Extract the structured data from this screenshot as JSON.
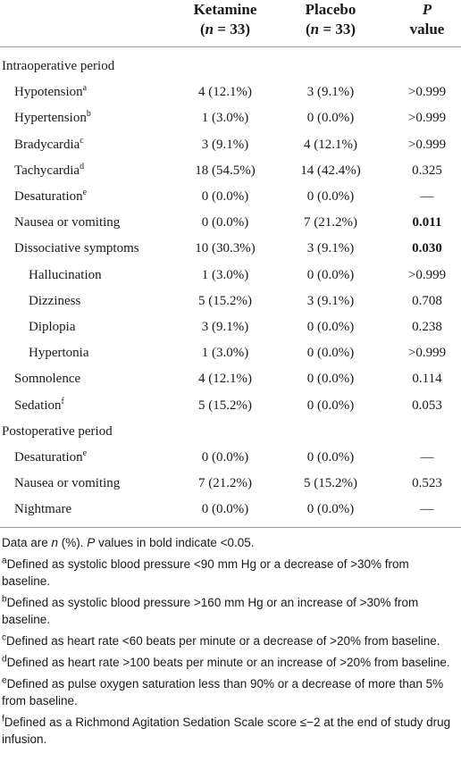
{
  "table": {
    "header": [
      {
        "lines": [
          [
            {
              "text": "Ketamine"
            }
          ],
          [
            {
              "text": "("
            },
            {
              "text": "n",
              "style": "italic"
            },
            {
              "text": " = 33)"
            }
          ]
        ]
      },
      {
        "lines": [
          [
            {
              "text": "Placebo"
            }
          ],
          [
            {
              "text": "("
            },
            {
              "text": "n",
              "style": "italic"
            },
            {
              "text": " = 33)"
            }
          ]
        ]
      },
      {
        "lines": [
          [
            {
              "text": "P",
              "style": "italic"
            }
          ],
          [
            {
              "text": "value"
            }
          ]
        ]
      }
    ],
    "rows": [
      {
        "label": "Intraoperative period",
        "level": 0
      },
      {
        "label": "Hypotension",
        "note": "a",
        "level": 1,
        "ketamine": "4 (12.1%)",
        "placebo": "3 (9.1%)",
        "p": ">0.999"
      },
      {
        "label": "Hypertension",
        "note": "b",
        "level": 1,
        "ketamine": "1 (3.0%)",
        "placebo": "0 (0.0%)",
        "p": ">0.999"
      },
      {
        "label": "Bradycardia",
        "note": "c",
        "level": 1,
        "ketamine": "3 (9.1%)",
        "placebo": "4 (12.1%)",
        "p": ">0.999"
      },
      {
        "label": "Tachycardia",
        "note": "d",
        "level": 1,
        "ketamine": "18 (54.5%)",
        "placebo": "14 (42.4%)",
        "p": "0.325"
      },
      {
        "label": "Desaturation",
        "note": "e",
        "level": 1,
        "ketamine": "0 (0.0%)",
        "placebo": "0 (0.0%)",
        "p": "—"
      },
      {
        "label": "Nausea or vomiting",
        "level": 1,
        "ketamine": "0 (0.0%)",
        "placebo": "7 (21.2%)",
        "p": "0.011",
        "p_bold": true
      },
      {
        "label": "Dissociative symptoms",
        "level": 1,
        "ketamine": "10 (30.3%)",
        "placebo": "3 (9.1%)",
        "p": "0.030",
        "p_bold": true
      },
      {
        "label": "Hallucination",
        "level": 2,
        "ketamine": "1 (3.0%)",
        "placebo": "0 (0.0%)",
        "p": ">0.999"
      },
      {
        "label": "Dizziness",
        "level": 2,
        "ketamine": "5 (15.2%)",
        "placebo": "3 (9.1%)",
        "p": "0.708"
      },
      {
        "label": "Diplopia",
        "level": 2,
        "ketamine": "3 (9.1%)",
        "placebo": "0 (0.0%)",
        "p": "0.238"
      },
      {
        "label": "Hypertonia",
        "level": 2,
        "ketamine": "1 (3.0%)",
        "placebo": "0 (0.0%)",
        "p": ">0.999"
      },
      {
        "label": "Somnolence",
        "level": 1,
        "ketamine": "4 (12.1%)",
        "placebo": "0 (0.0%)",
        "p": "0.114"
      },
      {
        "label": "Sedation",
        "note": "f",
        "level": 1,
        "ketamine": "5 (15.2%)",
        "placebo": "0 (0.0%)",
        "p": "0.053"
      },
      {
        "label": "Postoperative period",
        "level": 0
      },
      {
        "label": "Desaturation",
        "note": "e",
        "level": 1,
        "ketamine": "0 (0.0%)",
        "placebo": "0 (0.0%)",
        "p": "—"
      },
      {
        "label": "Nausea or vomiting",
        "level": 1,
        "ketamine": "7 (21.2%)",
        "placebo": "5 (15.2%)",
        "p": "0.523"
      },
      {
        "label": "Nightmare",
        "level": 1,
        "ketamine": "0 (0.0%)",
        "placebo": "0 (0.0%)",
        "p": "—"
      }
    ],
    "footnotes": [
      {
        "parts": [
          {
            "text": "Data are "
          },
          {
            "text": "n",
            "style": "italic"
          },
          {
            "text": " (%). "
          },
          {
            "text": "P",
            "style": "italic"
          },
          {
            "text": " values in bold indicate <0.05."
          }
        ]
      },
      {
        "mark": "a",
        "parts": [
          {
            "text": "Defined as systolic blood pressure <90 mm Hg or a decrease of >30% from baseline."
          }
        ]
      },
      {
        "mark": "b",
        "parts": [
          {
            "text": "Defined as systolic blood pressure >160 mm Hg or an increase of >30% from baseline."
          }
        ]
      },
      {
        "mark": "c",
        "parts": [
          {
            "text": "Defined as heart rate <60 beats per minute or a decrease of >20% from baseline."
          }
        ]
      },
      {
        "mark": "d",
        "parts": [
          {
            "text": "Defined as heart rate >100 beats per minute or an increase of >20% from baseline."
          }
        ]
      },
      {
        "mark": "e",
        "parts": [
          {
            "text": "Defined as pulse oxygen saturation less than 90% or a decrease of more than 5% from baseline."
          }
        ]
      },
      {
        "mark": "f",
        "parts": [
          {
            "text": "Defined as a Richmond Agitation Sedation Scale score ≤−2 at the end of study drug infusion."
          }
        ]
      }
    ]
  }
}
